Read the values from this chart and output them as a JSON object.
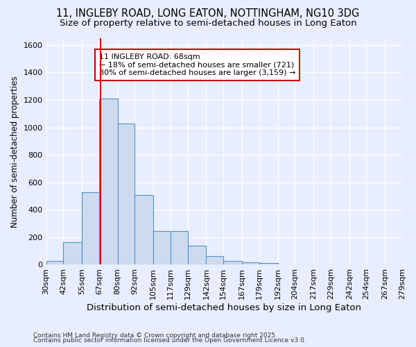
{
  "title_line1": "11, INGLEBY ROAD, LONG EATON, NOTTINGHAM, NG10 3DG",
  "title_line2": "Size of property relative to semi-detached houses in Long Eaton",
  "xlabel": "Distribution of semi-detached houses by size in Long Eaton",
  "ylabel": "Number of semi-detached properties",
  "bin_labels": [
    "30sqm",
    "42sqm",
    "55sqm",
    "67sqm",
    "80sqm",
    "92sqm",
    "105sqm",
    "117sqm",
    "129sqm",
    "142sqm",
    "154sqm",
    "167sqm",
    "179sqm",
    "192sqm",
    "204sqm",
    "217sqm",
    "229sqm",
    "242sqm",
    "254sqm",
    "267sqm",
    "279sqm"
  ],
  "bin_edges": [
    30,
    42,
    55,
    67,
    80,
    92,
    105,
    117,
    129,
    142,
    154,
    167,
    179,
    192,
    204,
    217,
    229,
    242,
    254,
    267,
    279
  ],
  "bar_heights": [
    30,
    165,
    530,
    1210,
    1030,
    510,
    245,
    245,
    140,
    65,
    30,
    20,
    10,
    0,
    0,
    0,
    0,
    0,
    0,
    0
  ],
  "bar_color": "#ccdcee",
  "bar_edgecolor": "#5590c8",
  "vline_x": 68,
  "vline_color": "#cc0000",
  "ylim": [
    0,
    1650
  ],
  "annotation_text": "11 INGLEBY ROAD: 68sqm\n← 18% of semi-detached houses are smaller (721)\n80% of semi-detached houses are larger (3,159) →",
  "footnote_line1": "Contains HM Land Registry data © Crown copyright and database right 2025.",
  "footnote_line2": "Contains public sector information licensed under the Open Government Licence v3.0.",
  "background_color": "#e8eeff",
  "plot_background": "#e8eeff",
  "grid_color": "#ffffff",
  "title_fontsize": 10.5,
  "subtitle_fontsize": 9.5,
  "ylabel_fontsize": 8.5,
  "xlabel_fontsize": 9.5,
  "tick_fontsize": 8,
  "annot_fontsize": 8,
  "footnote_fontsize": 6.5
}
